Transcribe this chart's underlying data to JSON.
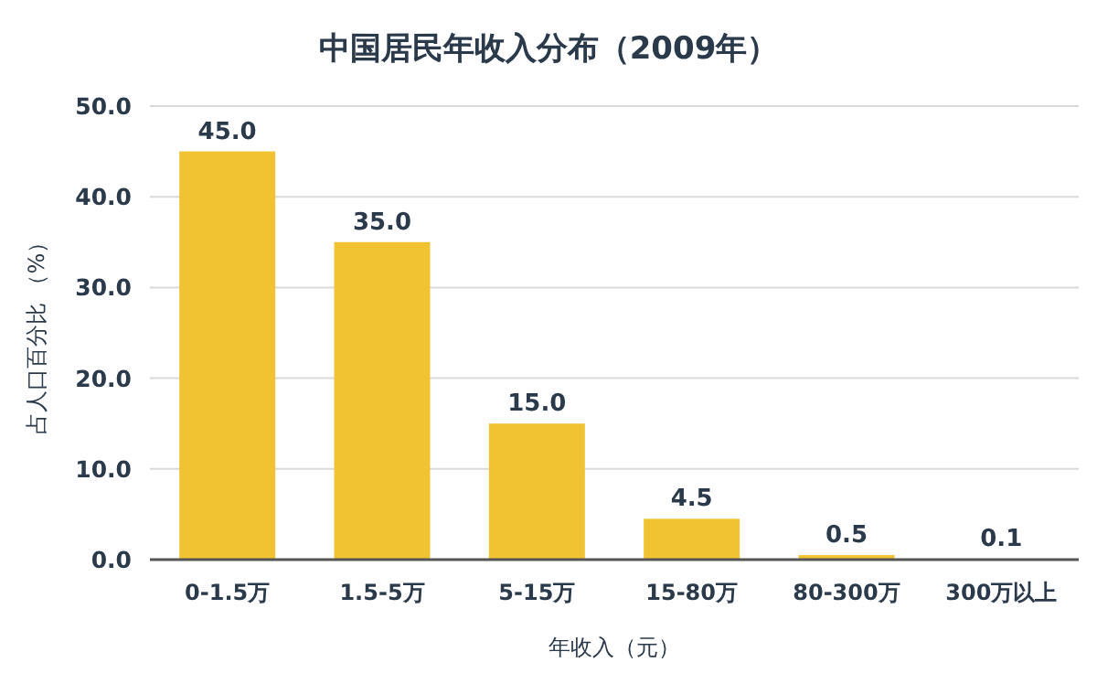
{
  "chart_data": {
    "type": "bar",
    "title": "中国居民年收入分布（2009年）",
    "xlabel": "年收入（元）",
    "ylabel": "占人口百分比 （%）",
    "categories": [
      "0-1.5万",
      "1.5-5万",
      "5-15万",
      "15-80万",
      "80-300万",
      "300万以上"
    ],
    "values": [
      45.0,
      35.0,
      15.0,
      4.5,
      0.5,
      0.1
    ],
    "value_labels": [
      "45.0",
      "35.0",
      "15.0",
      "4.5",
      "0.5",
      "0.1"
    ],
    "color": "#f1c232",
    "ylim": [
      0,
      50
    ],
    "yticks": [
      {
        "value": 0,
        "label": "0.0"
      },
      {
        "value": 10,
        "label": "10.0"
      },
      {
        "value": 20,
        "label": "20.0"
      },
      {
        "value": 30,
        "label": "30.0"
      },
      {
        "value": 40,
        "label": "40.0"
      },
      {
        "value": 50,
        "label": "50.0"
      }
    ],
    "grid": "y"
  }
}
